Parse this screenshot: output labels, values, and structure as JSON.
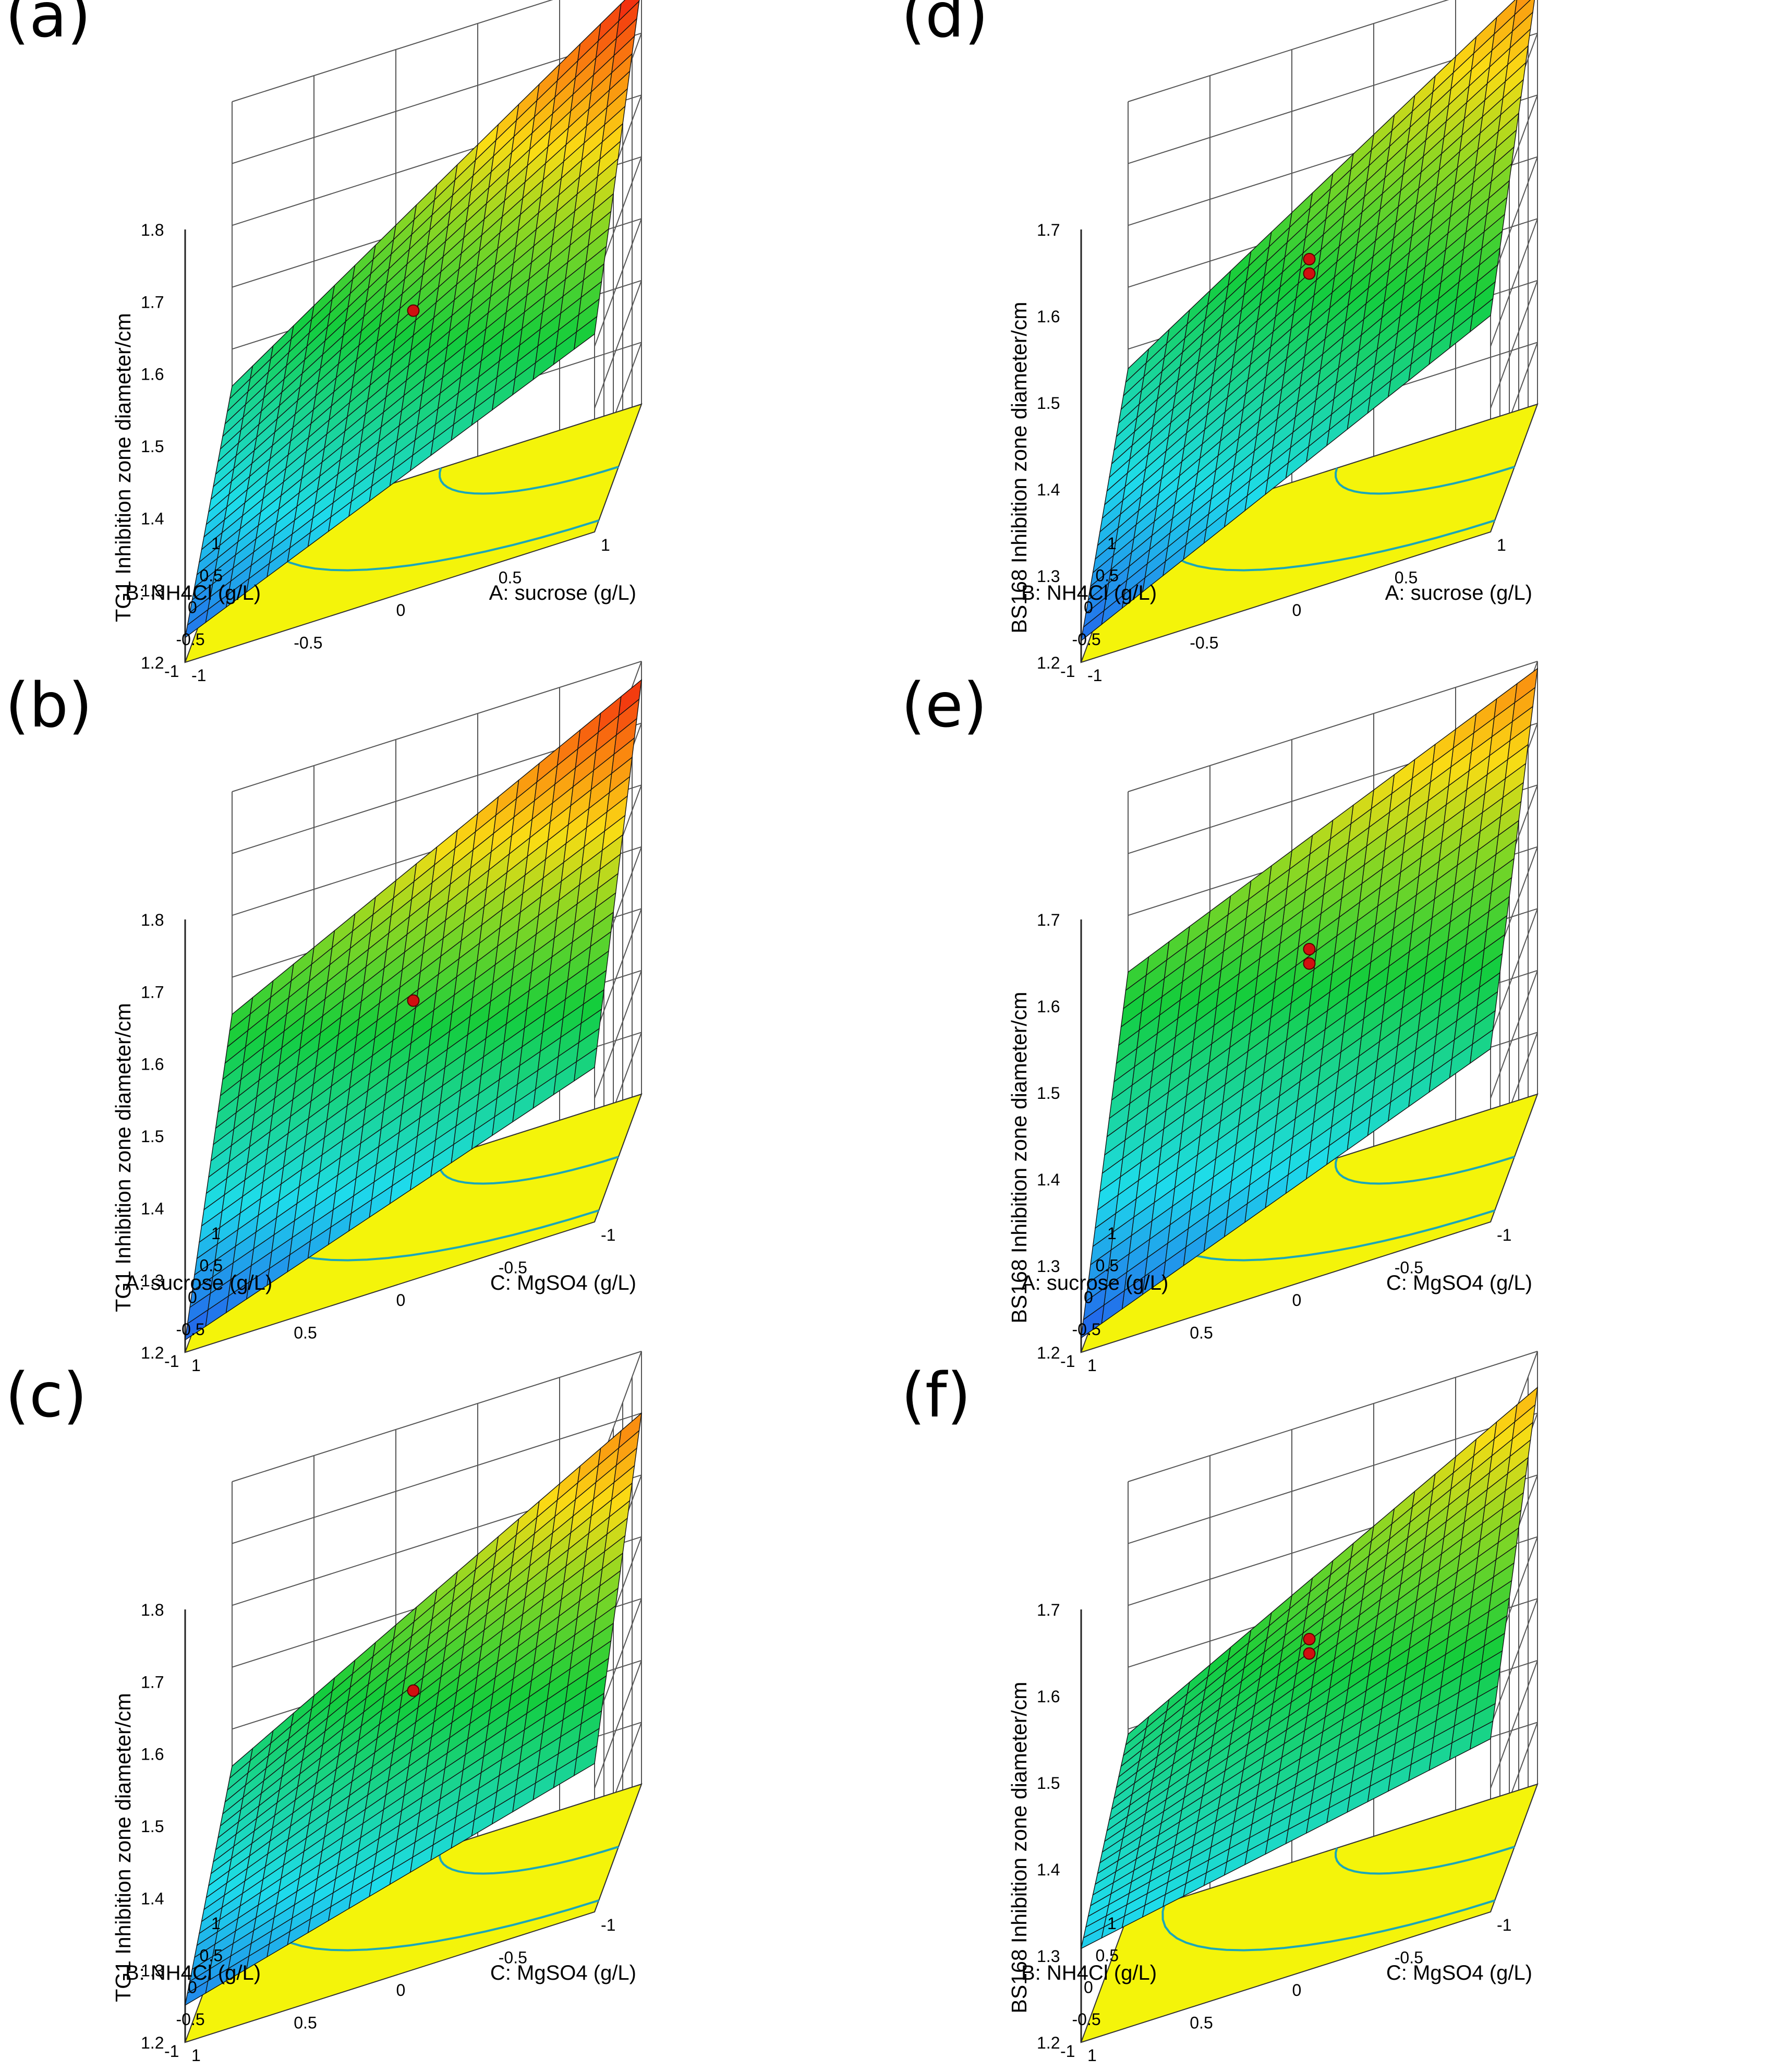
{
  "chart_data": [
    {
      "panel": "(a)",
      "type": "surface",
      "zlabel": "TG1 Inhibition zone diameter/cm",
      "xlabel": "B: NH4Cl (g/L)",
      "ylabel": "A: sucrose (g/L)",
      "xticks": [
        "1",
        "0.5",
        "0",
        "-0.5",
        "-1"
      ],
      "yticks": [
        "1",
        "0.5",
        "0",
        "-0.5",
        "-1"
      ],
      "zticks": [
        "1.8",
        "1.7",
        "1.6",
        "1.5",
        "1.4",
        "1.3",
        "1.2"
      ],
      "zlim": [
        1.1,
        1.8
      ],
      "corner_values": {
        "back": 1.78,
        "left": 1.34,
        "right": 1.42,
        "front": 1.14
      },
      "design_points": [
        1.46
      ]
    },
    {
      "panel": "(b)",
      "type": "surface",
      "zlabel": "TG1 Inhibition zone diameter/cm",
      "xlabel": "A: sucrose (g/L)",
      "ylabel": "C: MgSO4 (g/L)",
      "xticks": [
        "1",
        "0.5",
        "0",
        "-0.5",
        "-1"
      ],
      "yticks": [
        "-1",
        "-0.5",
        "0",
        "0.5",
        "1"
      ],
      "zticks": [
        "1.8",
        "1.7",
        "1.6",
        "1.5",
        "1.4",
        "1.3",
        "1.2"
      ],
      "zlim": [
        1.1,
        1.8
      ],
      "corner_values": {
        "back": 1.77,
        "left": 1.44,
        "right": 1.35,
        "front": 1.12
      },
      "design_points": [
        1.46
      ]
    },
    {
      "panel": "(c)",
      "type": "surface",
      "zlabel": "TG1 Inhibition zone diameter/cm",
      "xlabel": "B: NH4Cl (g/L)",
      "ylabel": "C: MgSO4 (g/L)",
      "xticks": [
        "1",
        "0.5",
        "0",
        "-0.5",
        "-1"
      ],
      "yticks": [
        "-1",
        "-0.5",
        "0",
        "0.5",
        "1"
      ],
      "zticks": [
        "1.8",
        "1.7",
        "1.6",
        "1.5",
        "1.4",
        "1.3",
        "1.2"
      ],
      "zlim": [
        1.1,
        1.8
      ],
      "corner_values": {
        "back": 1.7,
        "left": 1.34,
        "right": 1.34,
        "front": 1.16
      },
      "design_points": [
        1.46
      ]
    },
    {
      "panel": "(d)",
      "type": "surface",
      "zlabel": "BS168 Inhibition zone diameter/cm",
      "xlabel": "B: NH4Cl (g/L)",
      "ylabel": "A: sucrose (g/L)",
      "xticks": [
        "1",
        "0.5",
        "0",
        "-0.5",
        "-1"
      ],
      "yticks": [
        "1",
        "0.5",
        "0",
        "-0.5",
        "-1"
      ],
      "zticks": [
        "1.7",
        "1.6",
        "1.5",
        "1.4",
        "1.3",
        "1.2"
      ],
      "zlim": [
        1.1,
        1.7
      ],
      "corner_values": {
        "back": 1.69,
        "left": 1.33,
        "right": 1.4,
        "front": 1.13
      },
      "design_points": [
        1.46,
        1.48
      ]
    },
    {
      "panel": "(e)",
      "type": "surface",
      "zlabel": "BS168 Inhibition zone diameter/cm",
      "xlabel": "A: sucrose (g/L)",
      "ylabel": "C: MgSO4 (g/L)",
      "xticks": [
        "1",
        "0.5",
        "0",
        "-0.5",
        "-1"
      ],
      "yticks": [
        "-1",
        "-0.5",
        "0",
        "0.5",
        "1"
      ],
      "zticks": [
        "1.7",
        "1.6",
        "1.5",
        "1.4",
        "1.3",
        "1.2"
      ],
      "zlim": [
        1.1,
        1.7
      ],
      "corner_values": {
        "back": 1.69,
        "left": 1.45,
        "right": 1.34,
        "front": 1.12
      },
      "design_points": [
        1.46,
        1.48
      ]
    },
    {
      "panel": "(f)",
      "type": "surface",
      "zlabel": "BS168 Inhibition zone diameter/cm",
      "xlabel": "B: NH4Cl (g/L)",
      "ylabel": "C: MgSO4 (g/L)",
      "xticks": [
        "1",
        "0.5",
        "0",
        "-0.5",
        "-1"
      ],
      "yticks": [
        "-1",
        "-0.5",
        "0",
        "0.5",
        "1"
      ],
      "zticks": [
        "1.7",
        "1.6",
        "1.5",
        "1.4",
        "1.3",
        "1.2"
      ],
      "zlim": [
        1.1,
        1.7
      ],
      "corner_values": {
        "back": 1.65,
        "left": 1.35,
        "right": 1.34,
        "front": 1.23
      },
      "design_points": [
        1.46,
        1.48
      ]
    }
  ]
}
